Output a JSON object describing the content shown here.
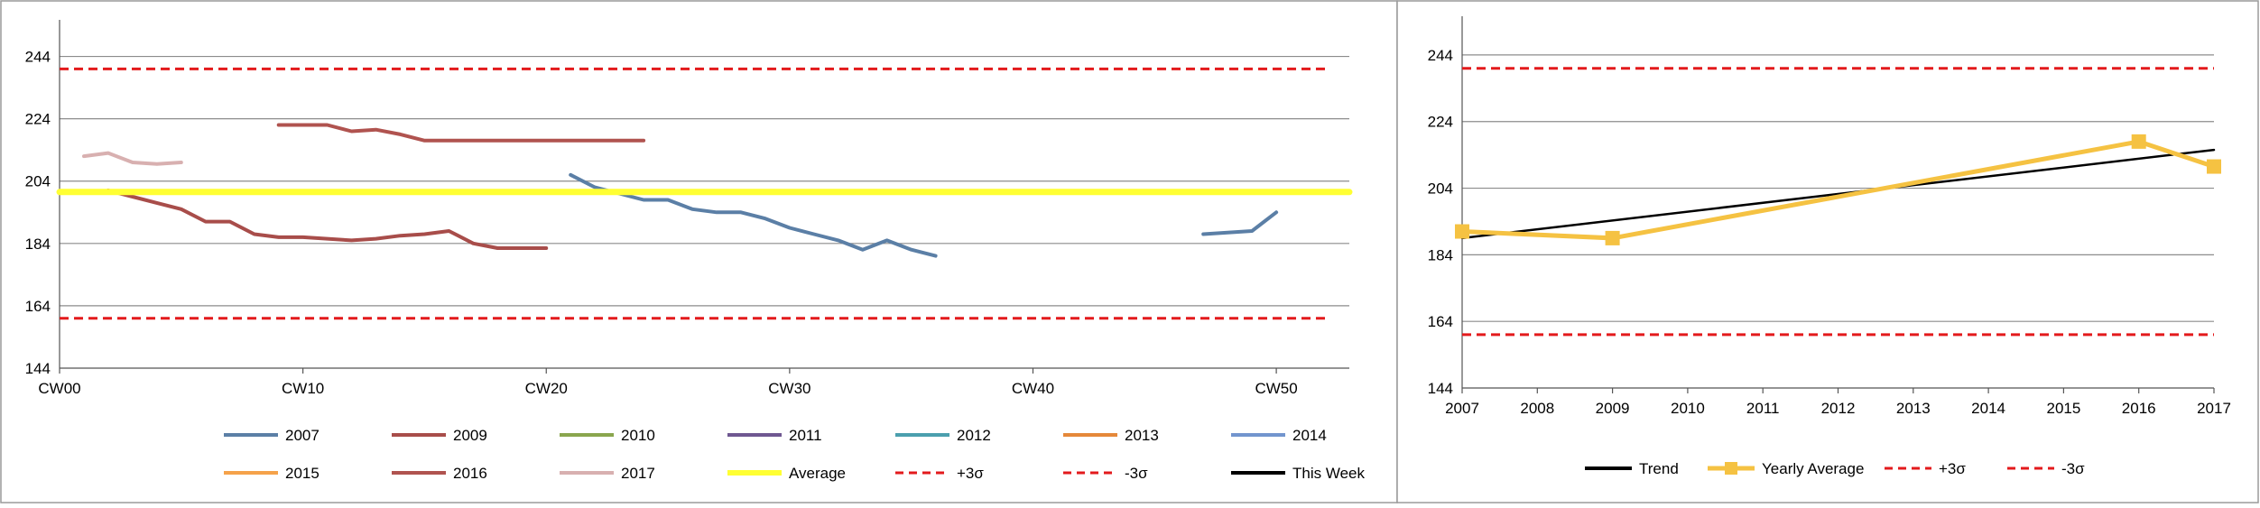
{
  "chart_data": [
    {
      "type": "line",
      "title": "",
      "xlabel": "",
      "ylabel": "",
      "xlim": [
        0,
        53
      ],
      "ylim": [
        144,
        254
      ],
      "y_ticks": [
        144,
        164,
        184,
        204,
        224,
        244
      ],
      "x_ticks": [
        0,
        10,
        20,
        30,
        40,
        50
      ],
      "x_tick_labels": [
        "CW00",
        "CW10",
        "CW20",
        "CW30",
        "CW40",
        "CW50"
      ],
      "grid": "horizontal",
      "legend_position": "bottom",
      "colors": {
        "2007": "#5b7fa6",
        "2009": "#a84d4a",
        "2010": "#8aa64e",
        "2011": "#6f5891",
        "2012": "#4b9fae",
        "2013": "#e5883a",
        "2014": "#7295ce",
        "2015": "#f5a24a",
        "2016": "#b0534f",
        "2017": "#d8b0b0",
        "average": "#ffff33",
        "sigma": "#e31a1c",
        "this_week": "#000000"
      },
      "series": [
        {
          "name": "2007",
          "x": [
            21,
            22,
            23,
            24,
            25,
            26,
            27,
            28,
            29,
            30,
            31,
            32,
            33,
            34,
            35,
            36
          ],
          "y": [
            206,
            202,
            200,
            198,
            198,
            195,
            194,
            194,
            192,
            189,
            187,
            185,
            182,
            185,
            182,
            180
          ]
        },
        {
          "name": "2007",
          "x": [
            47,
            48,
            49,
            50
          ],
          "y": [
            187,
            187.5,
            188,
            194
          ]
        },
        {
          "name": "2009",
          "x": [
            2,
            3,
            4,
            5,
            6,
            7,
            8,
            9,
            10,
            11,
            12,
            13,
            14,
            15,
            16,
            17,
            18,
            19,
            20
          ],
          "y": [
            201,
            199,
            197,
            195,
            191,
            191,
            187,
            186,
            186,
            185.5,
            185,
            185.5,
            186.5,
            187,
            188,
            184,
            182.5,
            182.5,
            182.5
          ]
        },
        {
          "name": "2010",
          "x": [],
          "y": []
        },
        {
          "name": "2011",
          "x": [],
          "y": []
        },
        {
          "name": "2012",
          "x": [],
          "y": []
        },
        {
          "name": "2013",
          "x": [],
          "y": []
        },
        {
          "name": "2014",
          "x": [],
          "y": []
        },
        {
          "name": "2015",
          "x": [],
          "y": []
        },
        {
          "name": "2016",
          "x": [
            9,
            10,
            11,
            12,
            13,
            14,
            15,
            16,
            17,
            18,
            19,
            20,
            21,
            22,
            23,
            24
          ],
          "y": [
            222,
            222,
            222,
            220,
            220.5,
            219,
            217,
            217,
            217,
            217,
            217,
            217,
            217,
            217,
            217,
            217
          ]
        },
        {
          "name": "2017",
          "x": [
            1,
            2,
            3,
            4,
            5
          ],
          "y": [
            212,
            213,
            210,
            209.5,
            210
          ]
        },
        {
          "name": "Average",
          "x": [
            0,
            53
          ],
          "y": [
            200.5,
            200.5
          ]
        },
        {
          "name": "+3σ",
          "x": [
            0,
            52
          ],
          "y": [
            240,
            240
          ]
        },
        {
          "name": "-3σ",
          "x": [
            0,
            52
          ],
          "y": [
            160,
            160
          ]
        },
        {
          "name": "This Week",
          "x": [],
          "y": []
        }
      ],
      "legend": [
        {
          "label": "2007",
          "key": "2007",
          "dashed": false
        },
        {
          "label": "2009",
          "key": "2009",
          "dashed": false
        },
        {
          "label": "2010",
          "key": "2010",
          "dashed": false
        },
        {
          "label": "2011",
          "key": "2011",
          "dashed": false
        },
        {
          "label": "2012",
          "key": "2012",
          "dashed": false
        },
        {
          "label": "2013",
          "key": "2013",
          "dashed": false
        },
        {
          "label": "2014",
          "key": "2014",
          "dashed": false
        },
        {
          "label": "2015",
          "key": "2015",
          "dashed": false
        },
        {
          "label": "2016",
          "key": "2016",
          "dashed": false
        },
        {
          "label": "2017",
          "key": "2017",
          "dashed": false
        },
        {
          "label": "Average",
          "key": "average",
          "dashed": false
        },
        {
          "label": "+3σ",
          "key": "sigma",
          "dashed": true
        },
        {
          "label": "-3σ",
          "key": "sigma",
          "dashed": true
        },
        {
          "label": "This Week",
          "key": "this_week",
          "dashed": false
        }
      ]
    },
    {
      "type": "line",
      "title": "",
      "xlabel": "",
      "ylabel": "",
      "xlim": [
        2007,
        2017
      ],
      "ylim": [
        144,
        254
      ],
      "y_ticks": [
        144,
        164,
        184,
        204,
        224,
        244
      ],
      "x_ticks": [
        2007,
        2008,
        2009,
        2010,
        2011,
        2012,
        2013,
        2014,
        2015,
        2016,
        2017
      ],
      "x_tick_labels": [
        "2007",
        "2008",
        "2009",
        "2010",
        "2011",
        "2012",
        "2013",
        "2014",
        "2015",
        "2016",
        "2017"
      ],
      "grid": "horizontal",
      "legend_position": "bottom",
      "colors": {
        "trend": "#000000",
        "yearly_average": "#f5c242",
        "sigma": "#e31a1c"
      },
      "series": [
        {
          "name": "Trend",
          "x": [
            2007,
            2017
          ],
          "y": [
            189,
            215.5
          ]
        },
        {
          "name": "Yearly Average",
          "x": [
            2007,
            2009,
            2016,
            2017
          ],
          "y": [
            191,
            189,
            218,
            210.5
          ],
          "markers": true
        },
        {
          "name": "+3σ",
          "x": [
            2007,
            2017
          ],
          "y": [
            240,
            240
          ]
        },
        {
          "name": "-3σ",
          "x": [
            2007,
            2017
          ],
          "y": [
            160,
            160
          ]
        }
      ],
      "legend": [
        {
          "label": "Trend",
          "key": "trend",
          "dashed": false,
          "marker": false
        },
        {
          "label": "Yearly Average",
          "key": "yearly_average",
          "dashed": false,
          "marker": true
        },
        {
          "label": "+3σ",
          "key": "sigma",
          "dashed": true,
          "marker": false
        },
        {
          "label": "-3σ",
          "key": "sigma",
          "dashed": true,
          "marker": false
        }
      ]
    }
  ]
}
